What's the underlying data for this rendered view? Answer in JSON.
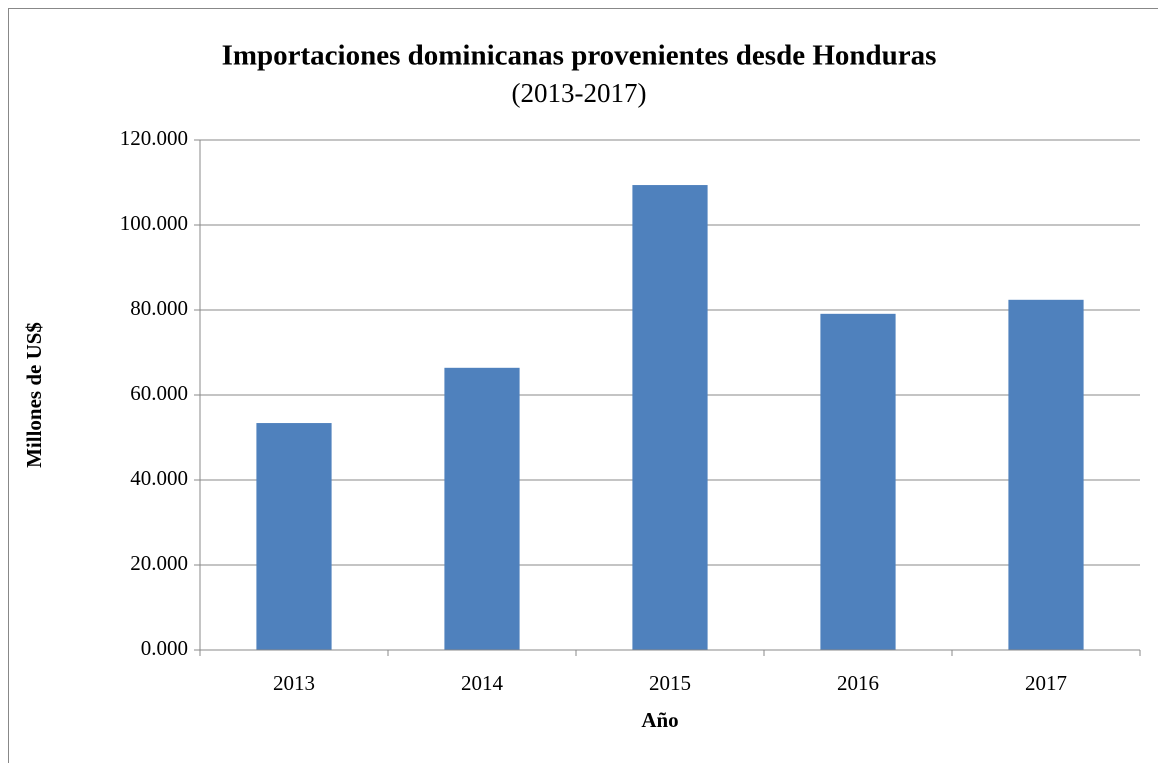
{
  "chart_data": {
    "type": "bar",
    "title": "Importaciones dominicanas provenientes desde Honduras",
    "subtitle": "(2013-2017)",
    "x_label": "Año",
    "y_label": "Millones de US$",
    "categories": [
      "2013",
      "2014",
      "2015",
      "2016",
      "2017"
    ],
    "values": [
      53.4,
      66.4,
      109.4,
      79.1,
      82.4
    ],
    "color": "#4f81bd",
    "ylim": [
      0,
      120
    ],
    "yticks": [
      {
        "value": 0,
        "label": "0.000"
      },
      {
        "value": 20,
        "label": "20.000"
      },
      {
        "value": 40,
        "label": "40.000"
      },
      {
        "value": 60,
        "label": "60.000"
      },
      {
        "value": 80,
        "label": "80.000"
      },
      {
        "value": 100,
        "label": "100.000"
      },
      {
        "value": 120,
        "label": "120.000"
      }
    ],
    "grid": true
  }
}
